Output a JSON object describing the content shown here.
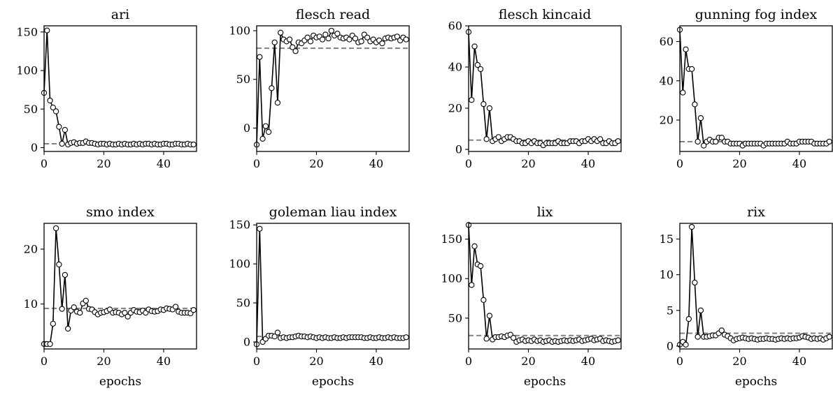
{
  "chart_data": [
    {
      "type": "line",
      "title": "ari",
      "xlabel": "",
      "xlim": [
        0,
        51
      ],
      "ylim": [
        -5,
        158
      ],
      "xticks": [
        0,
        20,
        40
      ],
      "yticks": [
        0,
        50,
        100,
        150
      ],
      "reference_value": 5,
      "x": [
        0,
        1,
        2,
        3,
        4,
        5,
        6,
        7,
        8,
        9,
        10,
        11,
        12,
        13,
        14,
        15,
        16,
        17,
        18,
        19,
        20,
        21,
        22,
        23,
        24,
        25,
        26,
        27,
        28,
        29,
        30,
        31,
        32,
        33,
        34,
        35,
        36,
        37,
        38,
        39,
        40,
        41,
        42,
        43,
        44,
        45,
        46,
        47,
        48,
        49,
        50
      ],
      "y": [
        71,
        152,
        61,
        52,
        47,
        27,
        5,
        23,
        4,
        6,
        7,
        5,
        6,
        6,
        8,
        6,
        6,
        5,
        4,
        5,
        5,
        4,
        5,
        4,
        4,
        5,
        4,
        5,
        4,
        4,
        5,
        4,
        5,
        4,
        5,
        5,
        4,
        5,
        4,
        4,
        5,
        5,
        4,
        4,
        5,
        5,
        4,
        4,
        5,
        4,
        4
      ]
    },
    {
      "type": "line",
      "title": "flesch read",
      "xlabel": "",
      "xlim": [
        0,
        51
      ],
      "ylim": [
        -24,
        105
      ],
      "xticks": [
        0,
        20,
        40
      ],
      "yticks": [
        0,
        50,
        100
      ],
      "reference_value": 82,
      "x": [
        0,
        1,
        2,
        3,
        4,
        5,
        6,
        7,
        8,
        9,
        10,
        11,
        12,
        13,
        14,
        15,
        16,
        17,
        18,
        19,
        20,
        21,
        22,
        23,
        24,
        25,
        26,
        27,
        28,
        29,
        30,
        31,
        32,
        33,
        34,
        35,
        36,
        37,
        38,
        39,
        40,
        41,
        42,
        43,
        44,
        45,
        46,
        47,
        48,
        49,
        50
      ],
      "y": [
        -17,
        73,
        -11,
        2,
        -4,
        41,
        88,
        26,
        98,
        91,
        89,
        91,
        83,
        79,
        88,
        87,
        90,
        93,
        89,
        95,
        93,
        94,
        91,
        96,
        92,
        100,
        95,
        97,
        93,
        92,
        93,
        91,
        95,
        92,
        88,
        89,
        96,
        93,
        89,
        91,
        88,
        90,
        87,
        92,
        93,
        92,
        93,
        94,
        90,
        93,
        91
      ]
    },
    {
      "type": "line",
      "title": "flesch kincaid",
      "xlabel": "",
      "xlim": [
        0,
        51
      ],
      "ylim": [
        -1,
        60
      ],
      "xticks": [
        0,
        20,
        40
      ],
      "yticks": [
        0,
        20,
        40,
        60
      ],
      "reference_value": 4.5,
      "x": [
        0,
        1,
        2,
        3,
        4,
        5,
        6,
        7,
        8,
        9,
        10,
        11,
        12,
        13,
        14,
        15,
        16,
        17,
        18,
        19,
        20,
        21,
        22,
        23,
        24,
        25,
        26,
        27,
        28,
        29,
        30,
        31,
        32,
        33,
        34,
        35,
        36,
        37,
        38,
        39,
        40,
        41,
        42,
        43,
        44,
        45,
        46,
        47,
        48,
        49,
        50
      ],
      "y": [
        57,
        24,
        50,
        41,
        39,
        22,
        5,
        20,
        4,
        5,
        6,
        4,
        5,
        6,
        6,
        5,
        4,
        4,
        3,
        3,
        4,
        3,
        4,
        3,
        3,
        2,
        3,
        3,
        3,
        3,
        4,
        3,
        3,
        3,
        4,
        4,
        4,
        3,
        4,
        4,
        5,
        4,
        5,
        4,
        5,
        3,
        3,
        4,
        3,
        3,
        4
      ]
    },
    {
      "type": "line",
      "title": "gunning fog index",
      "xlabel": "",
      "xlim": [
        0,
        51
      ],
      "ylim": [
        4,
        68
      ],
      "xticks": [
        0,
        20,
        40
      ],
      "yticks": [
        20,
        40,
        60
      ],
      "reference_value": 9,
      "x": [
        0,
        1,
        2,
        3,
        4,
        5,
        6,
        7,
        8,
        9,
        10,
        11,
        12,
        13,
        14,
        15,
        16,
        17,
        18,
        19,
        20,
        21,
        22,
        23,
        24,
        25,
        26,
        27,
        28,
        29,
        30,
        31,
        32,
        33,
        34,
        35,
        36,
        37,
        38,
        39,
        40,
        41,
        42,
        43,
        44,
        45,
        46,
        47,
        48,
        49,
        50
      ],
      "y": [
        66,
        34,
        56,
        46,
        46,
        28,
        9,
        21,
        7,
        9,
        10,
        9,
        9,
        11,
        11,
        9,
        9,
        8,
        8,
        8,
        8,
        7,
        8,
        8,
        8,
        8,
        8,
        8,
        7,
        8,
        8,
        8,
        8,
        8,
        8,
        8,
        9,
        8,
        8,
        8,
        9,
        9,
        9,
        9,
        9,
        8,
        8,
        8,
        8,
        8,
        9
      ]
    },
    {
      "type": "line",
      "title": "smo index",
      "xlabel": "epochs",
      "xlim": [
        0,
        51
      ],
      "ylim": [
        1.8,
        24.7
      ],
      "xticks": [
        0,
        20,
        40
      ],
      "yticks": [
        10,
        20
      ],
      "reference_value": 9.2,
      "x": [
        0,
        1,
        2,
        3,
        4,
        5,
        6,
        7,
        8,
        9,
        10,
        11,
        12,
        13,
        14,
        15,
        16,
        17,
        18,
        19,
        20,
        21,
        22,
        23,
        24,
        25,
        26,
        27,
        28,
        29,
        30,
        31,
        32,
        33,
        34,
        35,
        36,
        37,
        38,
        39,
        40,
        41,
        42,
        43,
        44,
        45,
        46,
        47,
        48,
        49,
        50
      ],
      "y": [
        2.7,
        2.7,
        2.7,
        6.4,
        23.8,
        17.2,
        9.1,
        15.3,
        5.5,
        8.8,
        9.4,
        8.6,
        8.4,
        10.1,
        10.6,
        9.1,
        9.0,
        8.5,
        8.1,
        8.4,
        8.5,
        8.7,
        9.0,
        8.4,
        8.5,
        8.4,
        8.1,
        8.4,
        7.7,
        8.4,
        8.9,
        8.6,
        8.5,
        8.8,
        8.4,
        9.0,
        8.7,
        8.6,
        8.7,
        9.0,
        8.9,
        9.2,
        9.1,
        9.0,
        9.5,
        8.6,
        8.4,
        8.4,
        8.4,
        8.3,
        8.9
      ]
    },
    {
      "type": "line",
      "title": "goleman liau index",
      "xlabel": "epochs",
      "xlim": [
        0,
        51
      ],
      "ylim": [
        -9,
        152
      ],
      "xticks": [
        0,
        20,
        40
      ],
      "yticks": [
        0,
        50,
        100,
        150
      ],
      "reference_value": 7,
      "x": [
        0,
        1,
        2,
        3,
        4,
        5,
        6,
        7,
        8,
        9,
        10,
        11,
        12,
        13,
        14,
        15,
        16,
        17,
        18,
        19,
        20,
        21,
        22,
        23,
        24,
        25,
        26,
        27,
        28,
        29,
        30,
        31,
        32,
        33,
        34,
        35,
        36,
        37,
        38,
        39,
        40,
        41,
        42,
        43,
        44,
        45,
        46,
        47,
        48,
        49,
        50
      ],
      "y": [
        -3,
        145,
        0,
        4,
        8,
        8,
        7,
        12,
        5,
        6,
        5,
        6,
        6,
        7,
        8,
        7,
        7,
        6,
        7,
        6,
        5,
        6,
        5,
        6,
        5,
        5,
        6,
        5,
        5,
        6,
        5,
        6,
        6,
        6,
        6,
        6,
        5,
        5,
        6,
        5,
        5,
        6,
        5,
        5,
        6,
        5,
        6,
        5,
        5,
        5,
        6
      ]
    },
    {
      "type": "line",
      "title": "lix",
      "xlabel": "epochs",
      "xlim": [
        0,
        51
      ],
      "ylim": [
        11,
        170
      ],
      "xticks": [
        0,
        20,
        40
      ],
      "yticks": [
        50,
        100,
        150
      ],
      "reference_value": 28,
      "x": [
        0,
        1,
        2,
        3,
        4,
        5,
        6,
        7,
        8,
        9,
        10,
        11,
        12,
        13,
        14,
        15,
        16,
        17,
        18,
        19,
        20,
        21,
        22,
        23,
        24,
        25,
        26,
        27,
        28,
        29,
        30,
        31,
        32,
        33,
        34,
        35,
        36,
        37,
        38,
        39,
        40,
        41,
        42,
        43,
        44,
        45,
        46,
        47,
        48,
        49,
        50
      ],
      "y": [
        168,
        92,
        141,
        118,
        116,
        73,
        24,
        53,
        23,
        26,
        26,
        27,
        26,
        28,
        29,
        25,
        20,
        22,
        23,
        21,
        22,
        21,
        23,
        21,
        22,
        20,
        21,
        22,
        20,
        21,
        20,
        21,
        22,
        21,
        22,
        21,
        22,
        23,
        21,
        22,
        23,
        24,
        22,
        23,
        24,
        21,
        22,
        21,
        20,
        21,
        22
      ]
    },
    {
      "type": "line",
      "title": "rix",
      "xlabel": "epochs",
      "xlim": [
        0,
        51
      ],
      "ylim": [
        -0.4,
        17.2
      ],
      "xticks": [
        0,
        20,
        40
      ],
      "yticks": [
        0,
        5,
        10,
        15
      ],
      "reference_value": 1.8,
      "x": [
        0,
        1,
        2,
        3,
        4,
        5,
        6,
        7,
        8,
        9,
        10,
        11,
        12,
        13,
        14,
        15,
        16,
        17,
        18,
        19,
        20,
        21,
        22,
        23,
        24,
        25,
        26,
        27,
        28,
        29,
        30,
        31,
        32,
        33,
        34,
        35,
        36,
        37,
        38,
        39,
        40,
        41,
        42,
        43,
        44,
        45,
        46,
        47,
        48,
        49,
        50
      ],
      "y": [
        0.2,
        0.6,
        0.2,
        3.8,
        16.7,
        8.9,
        1.3,
        5.0,
        1.3,
        1.3,
        1.4,
        1.5,
        1.5,
        1.8,
        2.2,
        1.6,
        1.4,
        1.1,
        0.8,
        1.0,
        1.1,
        1.2,
        1.1,
        1.0,
        1.1,
        1.0,
        0.9,
        1.0,
        1.0,
        1.1,
        1.0,
        1.0,
        0.9,
        1.0,
        1.1,
        1.0,
        1.1,
        1.0,
        1.1,
        1.1,
        1.2,
        1.4,
        1.3,
        1.2,
        1.0,
        1.1,
        1.0,
        1.1,
        0.9,
        1.1,
        1.3
      ]
    }
  ]
}
